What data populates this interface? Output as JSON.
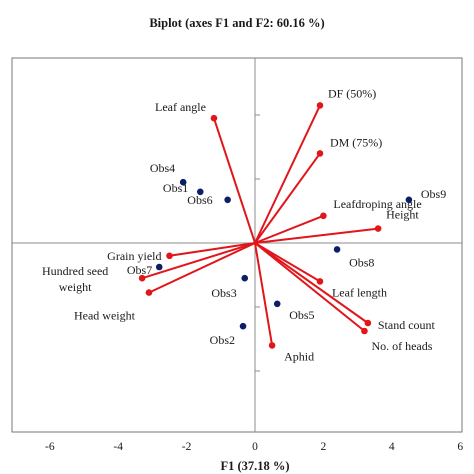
{
  "chart_data": {
    "type": "biplot",
    "title": "Biplot (axes F1 and F2: 60.16 %)",
    "xlabel": "F1 (37.18 %)",
    "ylabel": "",
    "xlim": [
      -6.1,
      6.0
    ],
    "ylim": [
      -6.0,
      5.6
    ],
    "xticks": [
      -6,
      -4,
      -2,
      0,
      2,
      4,
      6
    ],
    "xtick_labels": [
      "-6",
      "-4",
      "-2",
      "0",
      "2",
      "4",
      "6"
    ],
    "y_minor_ticks": [
      -4,
      -2,
      2,
      4
    ],
    "grid": false,
    "colors": {
      "variables": "#e0161b",
      "observations": "#0c1f66",
      "axes": "#8c8c8c"
    },
    "variables": [
      {
        "name": "Leaf angle",
        "x": -1.2,
        "y": 3.9
      },
      {
        "name": "DF (50%)",
        "x": 1.9,
        "y": 4.3
      },
      {
        "name": "DM (75%)",
        "x": 1.9,
        "y": 2.8
      },
      {
        "name": "Leafdroping angle",
        "x": 2.0,
        "y": 0.85
      },
      {
        "name": "Height",
        "x": 3.6,
        "y": 0.45
      },
      {
        "name": "Grain yield",
        "x": -2.5,
        "y": -0.4
      },
      {
        "name": "Hundred seed weight",
        "x": -3.3,
        "y": -1.1
      },
      {
        "name": "Head weight",
        "x": -3.1,
        "y": -1.55
      },
      {
        "name": "Leaf length",
        "x": 1.9,
        "y": -1.2
      },
      {
        "name": "Stand count",
        "x": 3.3,
        "y": -2.5
      },
      {
        "name": "No. of heads",
        "x": 3.2,
        "y": -2.75
      },
      {
        "name": "Aphid",
        "x": 0.5,
        "y": -3.2
      }
    ],
    "observations": [
      {
        "name": "Obs9",
        "x": 4.5,
        "y": 1.35
      },
      {
        "name": "Obs4",
        "x": -2.1,
        "y": 1.9
      },
      {
        "name": "Obs1",
        "x": -1.6,
        "y": 1.6
      },
      {
        "name": "Obs6",
        "x": -0.8,
        "y": 1.35
      },
      {
        "name": "Obs8",
        "x": 2.4,
        "y": -0.2
      },
      {
        "name": "Obs7",
        "x": -2.8,
        "y": -0.75
      },
      {
        "name": "Obs3",
        "x": -0.3,
        "y": -1.1
      },
      {
        "name": "Obs5",
        "x": 0.65,
        "y": -1.9
      },
      {
        "name": "Obs2",
        "x": -0.35,
        "y": -2.6
      }
    ]
  }
}
